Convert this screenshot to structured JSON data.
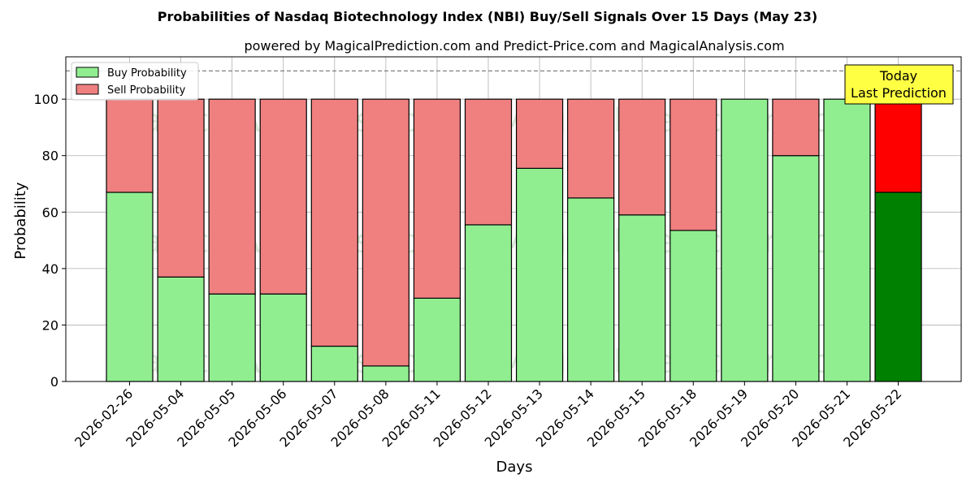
{
  "chart_data": {
    "type": "bar",
    "stacked": true,
    "title": "Probabilities of Nasdaq Biotechnology Index (NBI) Buy/Sell Signals Over 15 Days (May 23)",
    "subtitle": "powered by MagicalPrediction.com and Predict-Price.com and MagicalAnalysis.com",
    "xlabel": "Days",
    "ylabel": "Probability",
    "ylim": [
      0,
      115
    ],
    "yticks": [
      0,
      20,
      40,
      60,
      80,
      100
    ],
    "reference_line": 110,
    "grid": true,
    "legend_placement": "top-left",
    "categories": [
      "2026-02-26",
      "2026-05-04",
      "2026-05-05",
      "2026-05-06",
      "2026-05-07",
      "2026-05-08",
      "2026-05-11",
      "2026-05-12",
      "2026-05-13",
      "2026-05-14",
      "2026-05-15",
      "2026-05-18",
      "2026-05-19",
      "2026-05-20",
      "2026-05-21",
      "2026-05-22"
    ],
    "series": [
      {
        "name": "Buy Probability",
        "color": "#90ee90",
        "highlight_color": "#008000",
        "values": [
          67,
          37,
          31,
          31,
          12.5,
          5.5,
          29.5,
          55.5,
          75.5,
          65,
          59,
          53.5,
          100,
          80,
          100,
          67
        ]
      },
      {
        "name": "Sell Probability",
        "color": "#f08080",
        "highlight_color": "#ff0000",
        "values": [
          33,
          63,
          69,
          69,
          87.5,
          94.5,
          70.5,
          44.5,
          24.5,
          35,
          41,
          46.5,
          0,
          20,
          0,
          33
        ]
      }
    ],
    "highlight_index": 15,
    "annotation": {
      "line1": "Today",
      "line2": "Last Prediction",
      "color": "#ffff44"
    },
    "watermarks": [
      "MagicalAnalysis.com",
      "MagicalPrediction.com"
    ]
  }
}
